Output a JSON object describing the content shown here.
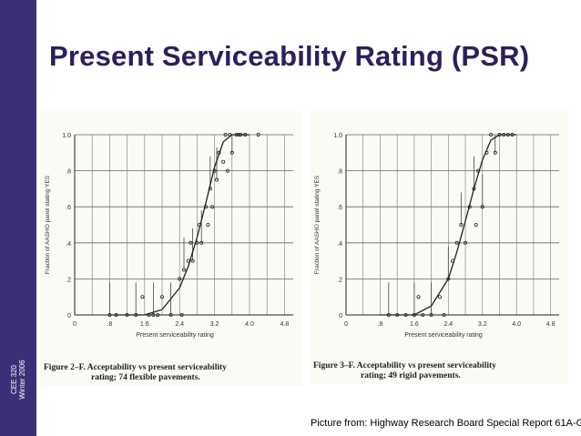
{
  "slide": {
    "title": "Present Serviceability Rating (PSR)",
    "course_line1": "CEE 320",
    "course_line2": "Winter 2006",
    "credit": "Picture from: Highway Research Board Special Report 61A-G"
  },
  "colors": {
    "sidebar": "#3d2e78",
    "title": "#2b1f5c",
    "figure_bg": "#fbfaf4",
    "ink": "#333333"
  },
  "chart_data": [
    {
      "type": "scatter",
      "title": "",
      "caption_line1": "Figure 2–F. Acceptability vs present serviceability",
      "caption_line2": "rating; 74 flexible pavements.",
      "xlabel": "Present serviceability rating",
      "ylabel": "Fraction of AASHO panel stating YES",
      "xlim": [
        0,
        5.0
      ],
      "ylim": [
        0,
        1.0
      ],
      "xticks": [
        0,
        0.8,
        1.6,
        2.4,
        3.2,
        4.0,
        4.8
      ],
      "xtick_labels": [
        "0",
        ".8",
        "1.6",
        "2.4",
        "3.2",
        "4.0",
        "4.8"
      ],
      "yticks": [
        0,
        0.2,
        0.4,
        0.6,
        0.8,
        1.0
      ],
      "ytick_labels": [
        "0",
        ".2",
        ".4",
        ".6",
        ".8",
        "1.0"
      ],
      "curve": {
        "name": "fitted",
        "x": [
          0.8,
          1.6,
          2.0,
          2.4,
          2.6,
          2.8,
          3.0,
          3.2,
          3.4,
          3.6,
          3.8,
          4.0
        ],
        "y": [
          0.0,
          0.0,
          0.03,
          0.15,
          0.27,
          0.43,
          0.62,
          0.82,
          0.96,
          1.0,
          1.0,
          1.0
        ]
      },
      "points": {
        "name": "observations",
        "x": [
          0.8,
          0.95,
          1.2,
          1.4,
          1.55,
          1.7,
          1.8,
          1.9,
          2.0,
          2.2,
          2.4,
          2.45,
          2.5,
          2.6,
          2.65,
          2.7,
          2.8,
          2.85,
          2.9,
          3.0,
          3.05,
          3.1,
          3.15,
          3.2,
          3.25,
          3.3,
          3.4,
          3.45,
          3.5,
          3.55,
          3.6,
          3.7,
          3.75,
          3.8,
          3.9,
          4.2
        ],
        "y": [
          0.0,
          0.0,
          0.0,
          0.0,
          0.1,
          0.0,
          0.0,
          0.0,
          0.1,
          0.0,
          0.2,
          0.0,
          0.25,
          0.3,
          0.4,
          0.3,
          0.4,
          0.5,
          0.4,
          0.6,
          0.5,
          0.7,
          0.6,
          0.8,
          0.75,
          0.9,
          0.85,
          1.0,
          0.8,
          1.0,
          0.9,
          1.0,
          1.0,
          1.0,
          1.0,
          1.0
        ]
      }
    },
    {
      "type": "scatter",
      "title": "",
      "caption_line1": "Figure 3–F. Acceptability vs present serviceability",
      "caption_line2": "rating; 49 rigid pavements.",
      "xlabel": "Present serviceability rating",
      "ylabel": "Fraction of AASHO panel stating YES",
      "xlim": [
        0,
        5.0
      ],
      "ylim": [
        0,
        1.0
      ],
      "xticks": [
        0,
        0.8,
        1.6,
        2.4,
        3.2,
        4.0,
        4.8
      ],
      "xtick_labels": [
        "0",
        ".8",
        "1.6",
        "2.4",
        "3.2",
        "4.0",
        "4.8"
      ],
      "yticks": [
        0,
        0.2,
        0.4,
        0.6,
        0.8,
        1.0
      ],
      "ytick_labels": [
        "0",
        ".2",
        ".4",
        ".6",
        ".8",
        "1.0"
      ],
      "curve": {
        "name": "fitted",
        "x": [
          0.8,
          1.6,
          2.0,
          2.4,
          2.6,
          2.8,
          3.0,
          3.2,
          3.4,
          3.6,
          3.8,
          4.0
        ],
        "y": [
          0.0,
          0.0,
          0.05,
          0.2,
          0.35,
          0.52,
          0.7,
          0.86,
          0.97,
          1.0,
          1.0,
          1.0
        ]
      },
      "points": {
        "name": "observations",
        "x": [
          1.0,
          1.2,
          1.4,
          1.6,
          1.7,
          1.8,
          2.0,
          2.2,
          2.3,
          2.4,
          2.5,
          2.6,
          2.7,
          2.8,
          2.9,
          3.0,
          3.05,
          3.1,
          3.2,
          3.3,
          3.4,
          3.5,
          3.6,
          3.7,
          3.8,
          3.9
        ],
        "y": [
          0.0,
          0.0,
          0.0,
          0.0,
          0.1,
          0.0,
          0.0,
          0.1,
          0.0,
          0.2,
          0.3,
          0.4,
          0.5,
          0.4,
          0.6,
          0.7,
          0.5,
          0.8,
          0.6,
          0.9,
          1.0,
          0.9,
          1.0,
          1.0,
          1.0,
          1.0
        ]
      }
    }
  ]
}
